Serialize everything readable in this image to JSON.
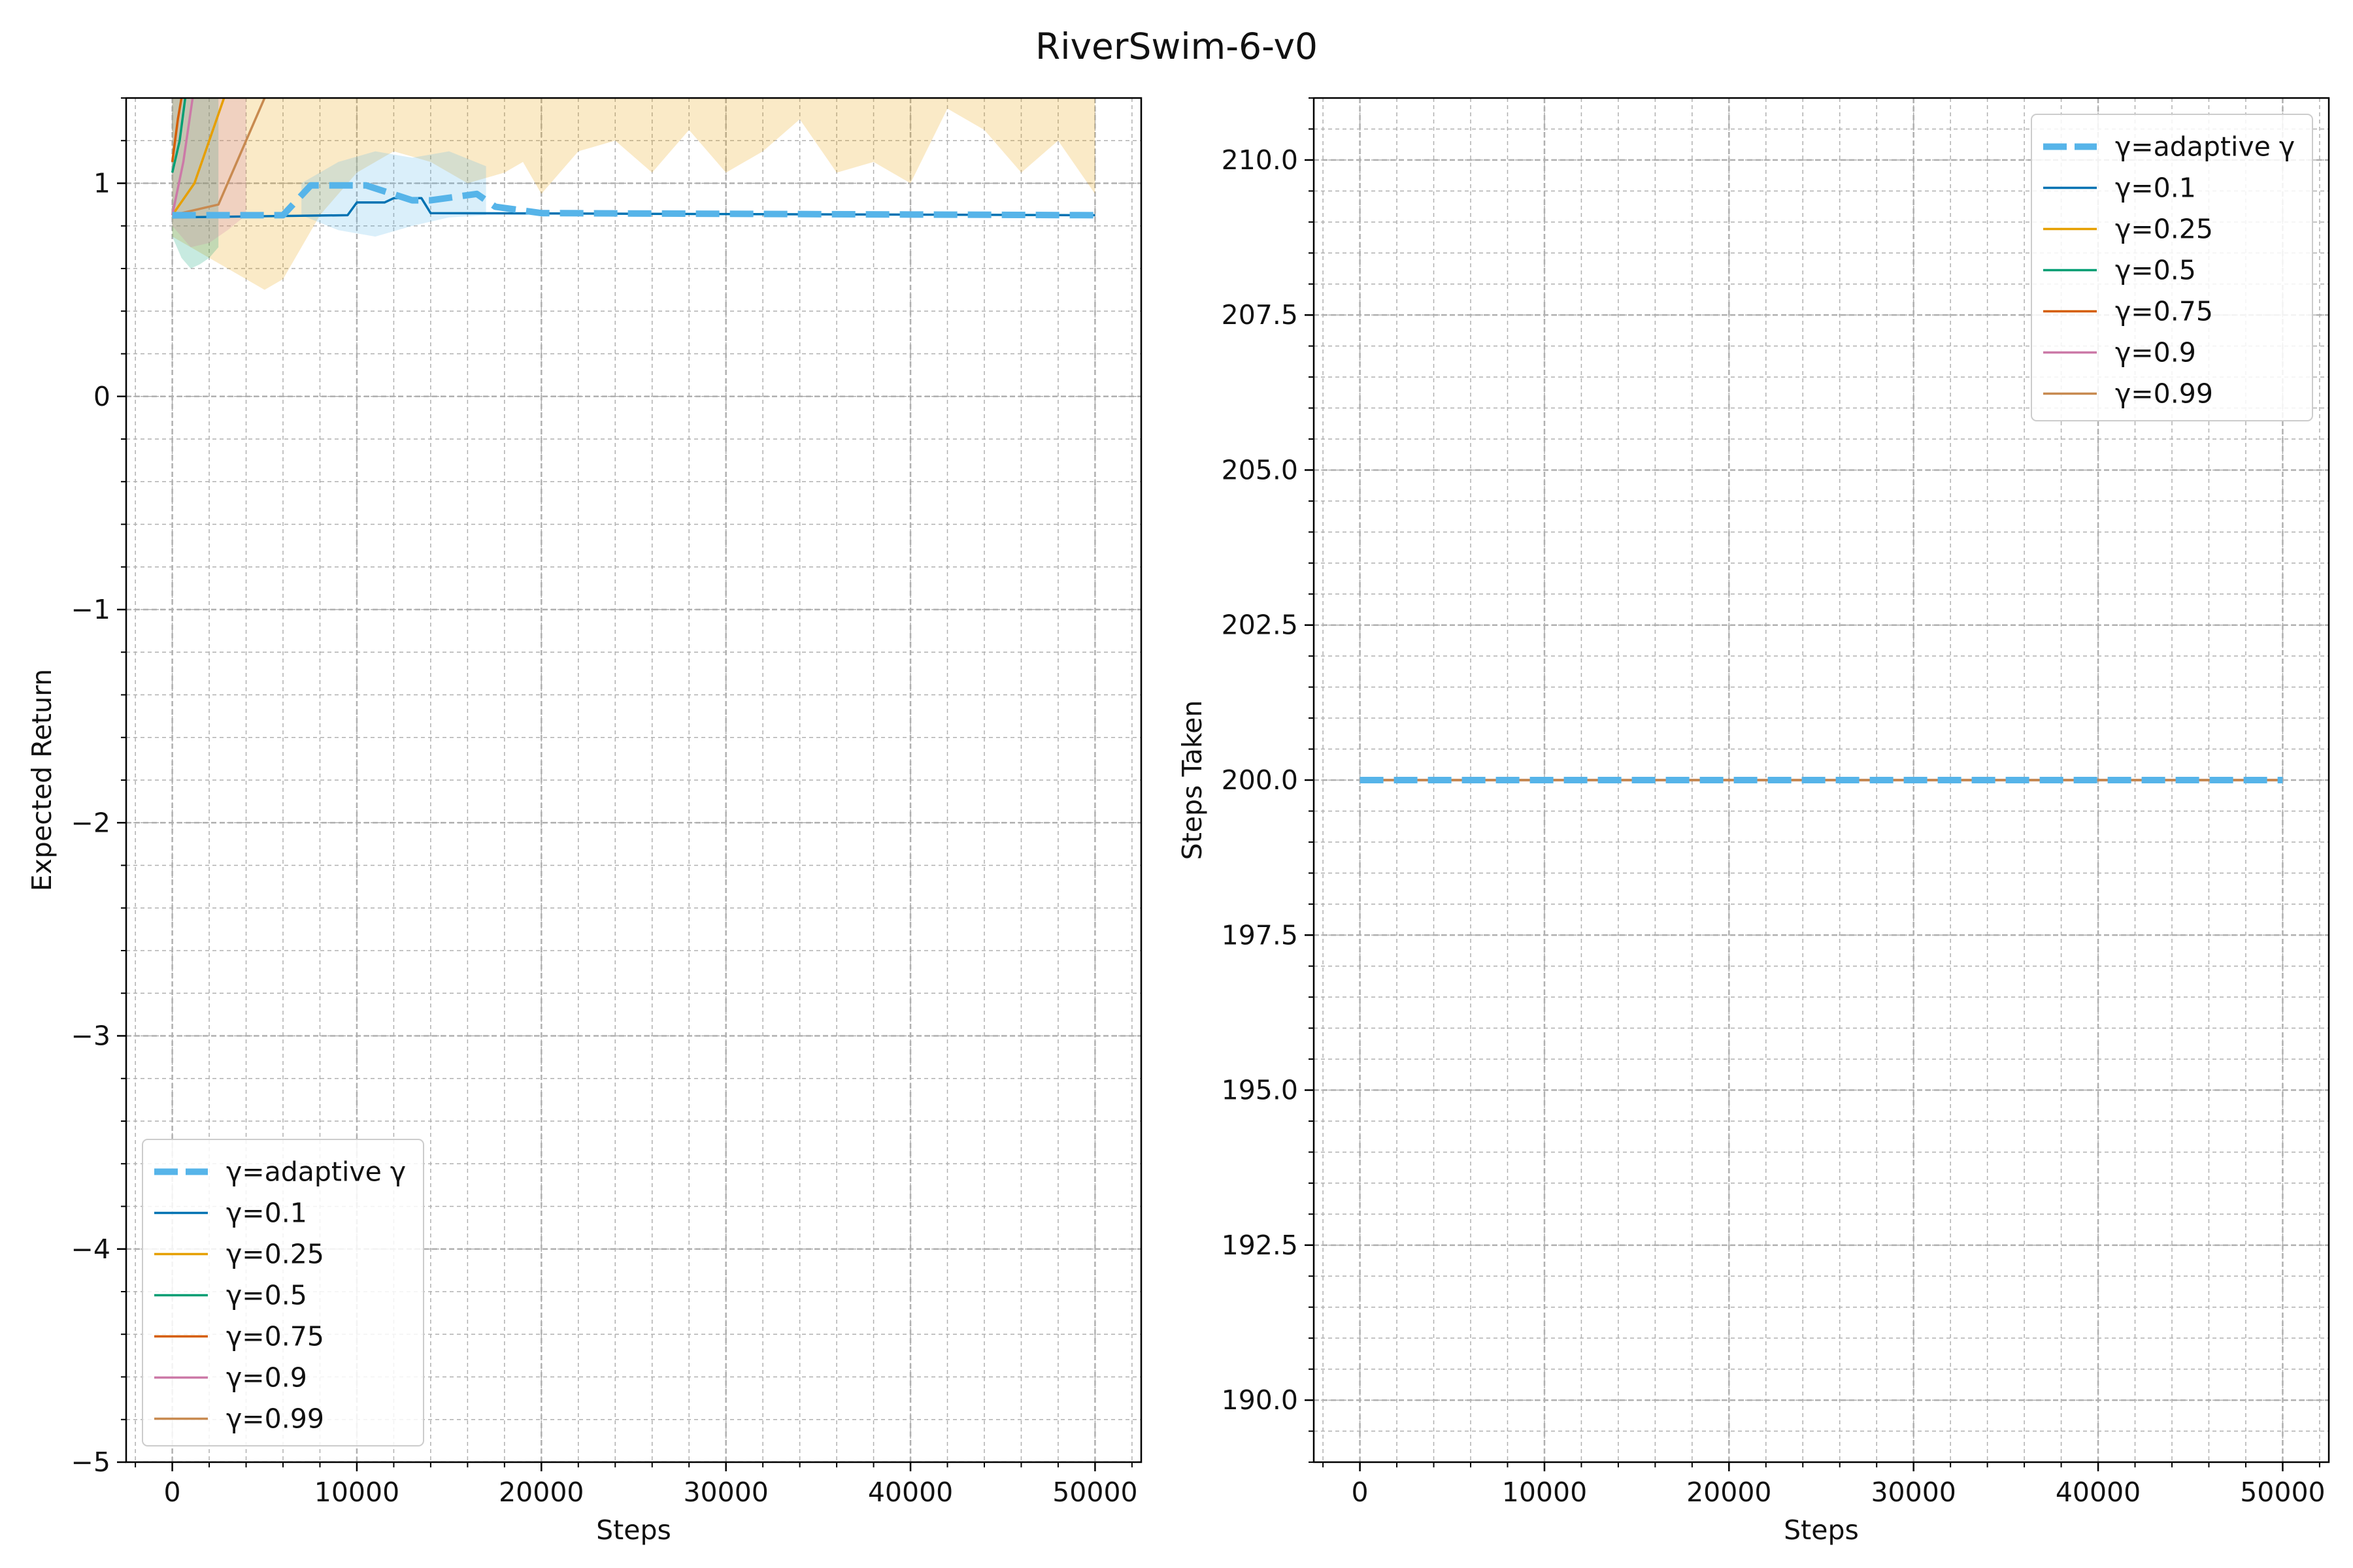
{
  "figure_title": "RiverSwim-6-v0",
  "colors": {
    "adaptive": "#56b4e9",
    "g0.1": "#0072b2",
    "g0.25": "#e69f00",
    "g0.5": "#009e73",
    "g0.75": "#d55e00",
    "g0.9": "#cc79a7",
    "g0.99": "#c88a50",
    "grid": "#b0b0b0"
  },
  "chart_data": [
    {
      "type": "line",
      "xlabel": "Steps",
      "ylabel": "Expected Return",
      "xlim": [
        -2500,
        52500
      ],
      "ylim": [
        -5,
        1.4
      ],
      "xticks": [
        0,
        10000,
        20000,
        30000,
        40000,
        50000
      ],
      "xtick_labels": [
        "0",
        "10000",
        "20000",
        "30000",
        "40000",
        "50000"
      ],
      "yticks": [
        -5,
        -4,
        -3,
        -2,
        -1,
        0,
        1
      ],
      "ytick_labels": [
        "−5",
        "−4",
        "−3",
        "−2",
        "−1",
        "0",
        "1"
      ],
      "grid": true,
      "legend_position": "lower-left",
      "series": [
        {
          "name": "γ=adaptive γ",
          "style": "dashed",
          "color_key": "adaptive",
          "x": [
            0,
            6000,
            7500,
            9500,
            10500,
            13000,
            14000,
            16500,
            17500,
            20000,
            50000
          ],
          "y": [
            0.85,
            0.85,
            0.99,
            0.99,
            0.99,
            0.92,
            0.92,
            0.95,
            0.89,
            0.86,
            0.85
          ]
        },
        {
          "name": "γ=0.1",
          "style": "solid",
          "color_key": "g0.1",
          "x": [
            0,
            9500,
            10000,
            11500,
            12000,
            13500,
            14000,
            50000
          ],
          "y": [
            0.84,
            0.85,
            0.91,
            0.91,
            0.93,
            0.93,
            0.86,
            0.85
          ]
        },
        {
          "name": "γ=0.25",
          "style": "solid",
          "color_key": "g0.25",
          "x": [
            0,
            1200,
            2000,
            2800
          ],
          "y": [
            0.85,
            1.0,
            1.2,
            1.4
          ]
        },
        {
          "name": "γ=0.5",
          "style": "solid",
          "color_key": "g0.5",
          "x": [
            0,
            400,
            700
          ],
          "y": [
            1.05,
            1.2,
            1.4
          ]
        },
        {
          "name": "γ=0.75",
          "style": "solid",
          "color_key": "g0.75",
          "x": [
            0,
            300,
            500
          ],
          "y": [
            1.1,
            1.3,
            1.4
          ]
        },
        {
          "name": "γ=0.9",
          "style": "solid",
          "color_key": "g0.9",
          "x": [
            0,
            600,
            1100
          ],
          "y": [
            0.85,
            1.1,
            1.4
          ]
        },
        {
          "name": "γ=0.99",
          "style": "solid",
          "color_key": "g0.99",
          "x": [
            0,
            2500,
            4000,
            5000
          ],
          "y": [
            0.85,
            0.9,
            1.2,
            1.4
          ]
        }
      ],
      "bands": [
        {
          "color_key": "g0.25",
          "x": [
            0,
            2000,
            4000,
            5000,
            6000,
            8000,
            10000,
            12000,
            14000,
            16000,
            18000,
            19000,
            20000,
            22000,
            24000,
            26000,
            28000,
            30000,
            32000,
            34000,
            36000,
            38000,
            40000,
            42000,
            44000,
            46000,
            48000,
            50000
          ],
          "upper": [
            1.4,
            1.4,
            1.4,
            1.4,
            1.4,
            1.4,
            1.4,
            1.4,
            1.4,
            1.4,
            1.4,
            1.4,
            1.4,
            1.4,
            1.4,
            1.4,
            1.4,
            1.4,
            1.4,
            1.4,
            1.4,
            1.4,
            1.4,
            1.4,
            1.4,
            1.4,
            1.4,
            1.4
          ],
          "lower": [
            0.75,
            0.65,
            0.55,
            0.5,
            0.55,
            0.85,
            1.05,
            1.15,
            1.1,
            1.0,
            1.05,
            1.1,
            0.95,
            1.15,
            1.2,
            1.05,
            1.25,
            1.05,
            1.15,
            1.3,
            1.05,
            1.1,
            1.0,
            1.35,
            1.25,
            1.05,
            1.2,
            0.95
          ]
        },
        {
          "color_key": "adaptive",
          "x": [
            7000,
            9000,
            11000,
            13000,
            15000,
            17000
          ],
          "upper": [
            1.0,
            1.1,
            1.15,
            1.12,
            1.15,
            1.08
          ],
          "lower": [
            0.85,
            0.78,
            0.75,
            0.8,
            0.84,
            0.85
          ]
        },
        {
          "color_key": "g0.5",
          "x": [
            0,
            500,
            1000,
            1500,
            2000,
            2500
          ],
          "upper": [
            1.4,
            1.4,
            1.4,
            1.4,
            1.4,
            1.4
          ],
          "lower": [
            0.75,
            0.65,
            0.6,
            0.62,
            0.65,
            0.7
          ]
        },
        {
          "color_key": "g0.9",
          "x": [
            0,
            1000,
            2000,
            3000,
            4000
          ],
          "upper": [
            1.4,
            1.4,
            1.4,
            1.4,
            1.4
          ],
          "lower": [
            0.8,
            0.7,
            0.72,
            0.78,
            0.85
          ]
        }
      ]
    },
    {
      "type": "line",
      "xlabel": "Steps",
      "ylabel": "Steps Taken",
      "xlim": [
        -2500,
        52500
      ],
      "ylim": [
        189,
        211
      ],
      "xticks": [
        0,
        10000,
        20000,
        30000,
        40000,
        50000
      ],
      "xtick_labels": [
        "0",
        "10000",
        "20000",
        "30000",
        "40000",
        "50000"
      ],
      "yticks": [
        190,
        192.5,
        195,
        197.5,
        200,
        202.5,
        205,
        207.5,
        210
      ],
      "ytick_labels": [
        "190.0",
        "192.5",
        "195.0",
        "197.5",
        "200.0",
        "202.5",
        "205.0",
        "207.5",
        "210.0"
      ],
      "grid": true,
      "legend_position": "upper-right",
      "series": [
        {
          "name": "γ=adaptive γ",
          "style": "dashed",
          "color_key": "adaptive",
          "x": [
            0,
            50000
          ],
          "y": [
            200,
            200
          ]
        },
        {
          "name": "γ=0.1",
          "style": "solid",
          "color_key": "g0.1",
          "x": [
            0,
            50000
          ],
          "y": [
            200,
            200
          ]
        },
        {
          "name": "γ=0.25",
          "style": "solid",
          "color_key": "g0.25",
          "x": [
            0,
            50000
          ],
          "y": [
            200,
            200
          ]
        },
        {
          "name": "γ=0.5",
          "style": "solid",
          "color_key": "g0.5",
          "x": [
            0,
            50000
          ],
          "y": [
            200,
            200
          ]
        },
        {
          "name": "γ=0.75",
          "style": "solid",
          "color_key": "g0.75",
          "x": [
            0,
            50000
          ],
          "y": [
            200,
            200
          ]
        },
        {
          "name": "γ=0.9",
          "style": "solid",
          "color_key": "g0.9",
          "x": [
            0,
            50000
          ],
          "y": [
            200,
            200
          ]
        },
        {
          "name": "γ=0.99",
          "style": "solid",
          "color_key": "g0.99",
          "x": [
            0,
            50000
          ],
          "y": [
            200,
            200
          ]
        }
      ],
      "bands": []
    }
  ]
}
